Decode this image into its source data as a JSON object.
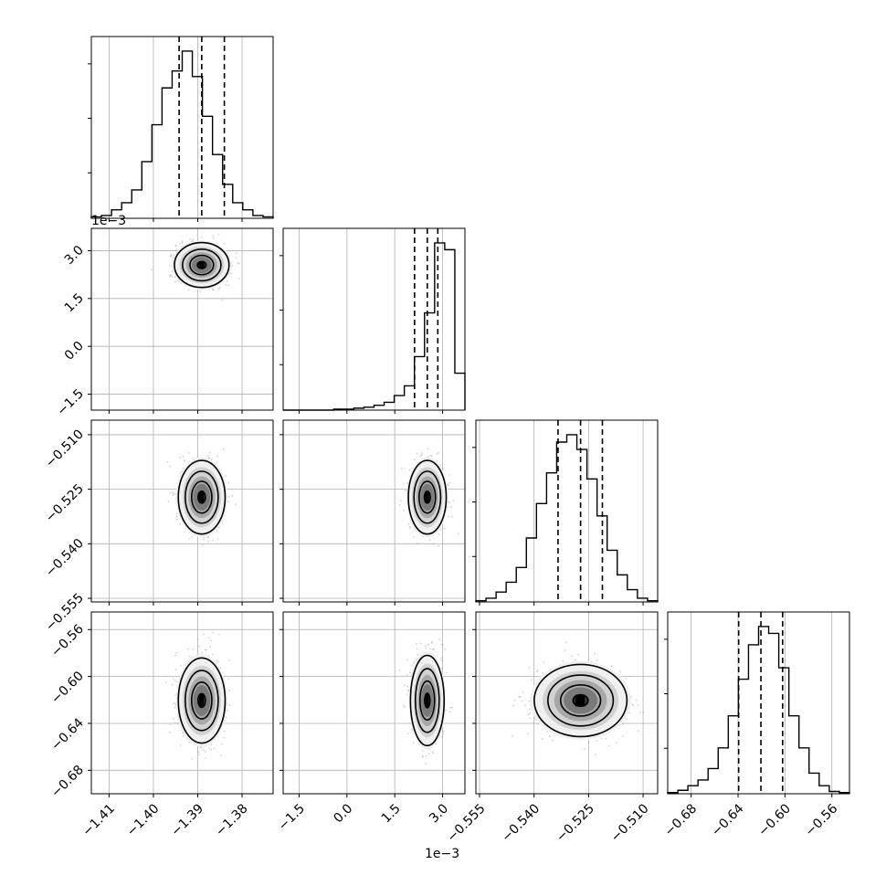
{
  "chart_data": {
    "type": "corner",
    "variables": [
      {
        "ticks": [
          "−1.41",
          "−1.40",
          "−1.39",
          "−1.38"
        ],
        "tick_values": [
          -1.41,
          -1.4,
          -1.39,
          -1.38
        ],
        "range": [
          -1.414,
          -1.373
        ],
        "unit_offset": "1e−3",
        "hist_bins": [
          1,
          2,
          6,
          11,
          20,
          40,
          66,
          92,
          104,
          118,
          100,
          72,
          45,
          24,
          11,
          6,
          2,
          1
        ],
        "quantiles": [
          -1.3942,
          -1.3891,
          -1.384
        ]
      },
      {
        "ticks": [
          "−1.5",
          "0.0",
          "1.5",
          "3.0"
        ],
        "tick_values": [
          -1.5,
          0.0,
          1.5,
          3.0
        ],
        "range": [
          -2.0,
          3.7
        ],
        "unit_offset": "1e−3",
        "hist_bins": [
          0,
          0,
          0,
          0,
          0,
          1,
          1,
          2,
          3,
          5,
          8,
          15,
          25,
          55,
          100,
          172,
          165,
          38
        ],
        "quantiles": [
          2.12,
          2.52,
          2.85
        ]
      },
      {
        "ticks": [
          "−0.555",
          "−0.540",
          "−0.525",
          "−0.510"
        ],
        "tick_values": [
          -0.555,
          -0.54,
          -0.525,
          -0.51
        ],
        "range": [
          -0.556,
          -0.506
        ],
        "hist_bins": [
          1,
          3,
          8,
          16,
          28,
          52,
          80,
          105,
          130,
          136,
          124,
          100,
          70,
          42,
          22,
          10,
          3,
          1
        ],
        "quantiles": [
          -0.5334,
          -0.5272,
          -0.5212
        ]
      },
      {
        "ticks": [
          "−0.68",
          "−0.64",
          "−0.60",
          "−0.56"
        ],
        "tick_values": [
          -0.68,
          -0.64,
          -0.6,
          -0.56
        ],
        "range": [
          -0.7,
          -0.545
        ],
        "hist_bins": [
          1,
          3,
          7,
          12,
          22,
          40,
          68,
          100,
          130,
          146,
          140,
          110,
          68,
          40,
          18,
          7,
          2,
          1
        ],
        "quantiles": [
          -0.6395,
          -0.6205,
          -0.602
        ]
      }
    ],
    "pairs": [
      {
        "i": 1,
        "j": 0,
        "center": [
          -1.3891,
          2.55
        ],
        "spread": [
          0.0028,
          0.32
        ]
      },
      {
        "i": 2,
        "j": 0,
        "center": [
          -1.3891,
          -0.5272
        ],
        "spread": [
          0.0024,
          0.0046
        ]
      },
      {
        "i": 2,
        "j": 1,
        "center": [
          2.52,
          -0.5272
        ],
        "spread": [
          0.27,
          0.0046
        ]
      },
      {
        "i": 3,
        "j": 0,
        "center": [
          -1.3891,
          -0.6205
        ],
        "spread": [
          0.0024,
          0.0165
        ]
      },
      {
        "i": 3,
        "j": 1,
        "center": [
          2.52,
          -0.6205
        ],
        "spread": [
          0.24,
          0.0175
        ]
      },
      {
        "i": 3,
        "j": 2,
        "center": [
          -0.5272,
          -0.6205
        ],
        "spread": [
          0.0058,
          0.014
        ]
      }
    ],
    "grid": true
  },
  "colors": {
    "line": "#000000",
    "grid": "#b0b0b0",
    "scatter": "#9a9a9a",
    "background": "#ffffff"
  }
}
